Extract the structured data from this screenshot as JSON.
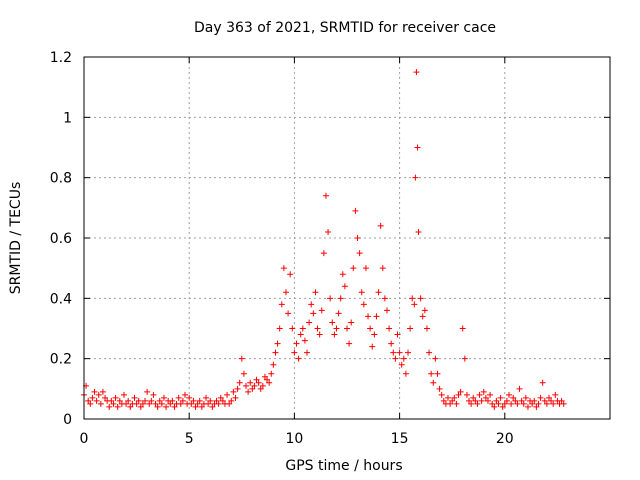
{
  "chart_data": {
    "type": "scatter",
    "title": "Day 363 of 2021, SRMTID for receiver cace",
    "xlabel": "GPS time / hours",
    "ylabel": "SRMTID / TECUs",
    "xlim": [
      0,
      25
    ],
    "ylim": [
      0,
      1.2
    ],
    "xticks": [
      0,
      5,
      10,
      15,
      20
    ],
    "xtick_labels": [
      "0",
      "5",
      "10",
      "15",
      "20"
    ],
    "yticks": [
      0,
      0.2,
      0.4,
      0.6,
      0.8,
      1.0,
      1.2
    ],
    "ytick_labels": [
      "0",
      "0.2",
      "0.4",
      "0.6",
      "0.8",
      "1",
      "1.2"
    ],
    "grid": true,
    "marker": "+",
    "marker_color": "#ff0000",
    "series": [
      {
        "name": "SRMTID",
        "x": [
          0.0,
          0.1,
          0.2,
          0.3,
          0.4,
          0.5,
          0.6,
          0.7,
          0.8,
          0.9,
          1.0,
          1.1,
          1.2,
          1.3,
          1.4,
          1.5,
          1.6,
          1.7,
          1.8,
          1.9,
          2.0,
          2.1,
          2.2,
          2.3,
          2.4,
          2.5,
          2.6,
          2.7,
          2.8,
          2.9,
          3.0,
          3.1,
          3.2,
          3.3,
          3.4,
          3.5,
          3.6,
          3.7,
          3.8,
          3.9,
          4.0,
          4.1,
          4.2,
          4.3,
          4.4,
          4.5,
          4.6,
          4.7,
          4.8,
          4.9,
          5.0,
          5.1,
          5.2,
          5.3,
          5.4,
          5.5,
          5.6,
          5.7,
          5.8,
          5.9,
          6.0,
          6.1,
          6.2,
          6.3,
          6.4,
          6.5,
          6.6,
          6.7,
          6.8,
          6.9,
          7.0,
          7.1,
          7.2,
          7.3,
          7.4,
          7.5,
          7.6,
          7.7,
          7.8,
          7.9,
          8.0,
          8.1,
          8.2,
          8.3,
          8.4,
          8.5,
          8.6,
          8.7,
          8.8,
          8.9,
          9.0,
          9.1,
          9.2,
          9.3,
          9.4,
          9.5,
          9.6,
          9.7,
          9.8,
          9.9,
          10.0,
          10.1,
          10.2,
          10.3,
          10.4,
          10.5,
          10.6,
          10.7,
          10.8,
          10.9,
          11.0,
          11.1,
          11.2,
          11.3,
          11.4,
          11.5,
          11.6,
          11.7,
          11.8,
          11.9,
          12.0,
          12.1,
          12.2,
          12.3,
          12.4,
          12.5,
          12.6,
          12.7,
          12.8,
          12.9,
          13.0,
          13.1,
          13.2,
          13.3,
          13.4,
          13.5,
          13.6,
          13.7,
          13.8,
          13.9,
          14.0,
          14.1,
          14.2,
          14.3,
          14.4,
          14.5,
          14.6,
          14.7,
          14.8,
          14.9,
          15.0,
          15.1,
          15.2,
          15.3,
          15.4,
          15.5,
          15.6,
          15.7,
          15.75,
          15.8,
          15.85,
          15.9,
          16.0,
          16.1,
          16.2,
          16.3,
          16.4,
          16.5,
          16.6,
          16.7,
          16.8,
          16.9,
          17.0,
          17.1,
          17.2,
          17.3,
          17.4,
          17.5,
          17.6,
          17.7,
          17.8,
          17.9,
          18.0,
          18.1,
          18.2,
          18.3,
          18.4,
          18.5,
          18.6,
          18.7,
          18.8,
          18.9,
          19.0,
          19.1,
          19.2,
          19.3,
          19.4,
          19.5,
          19.6,
          19.7,
          19.8,
          19.9,
          20.0,
          20.1,
          20.2,
          20.3,
          20.4,
          20.5,
          20.6,
          20.7,
          20.8,
          20.9,
          21.0,
          21.1,
          21.2,
          21.3,
          21.4,
          21.5,
          21.6,
          21.7,
          21.8,
          21.9,
          22.0,
          22.1,
          22.2,
          22.3,
          22.4,
          22.5,
          22.6,
          22.7,
          22.8
        ],
        "y": [
          0.08,
          0.11,
          0.06,
          0.05,
          0.07,
          0.09,
          0.06,
          0.08,
          0.05,
          0.09,
          0.07,
          0.06,
          0.04,
          0.06,
          0.05,
          0.07,
          0.04,
          0.06,
          0.05,
          0.08,
          0.05,
          0.06,
          0.04,
          0.05,
          0.07,
          0.05,
          0.06,
          0.04,
          0.05,
          0.06,
          0.09,
          0.05,
          0.06,
          0.08,
          0.05,
          0.04,
          0.06,
          0.05,
          0.07,
          0.04,
          0.06,
          0.05,
          0.06,
          0.04,
          0.05,
          0.07,
          0.05,
          0.06,
          0.08,
          0.05,
          0.07,
          0.05,
          0.06,
          0.04,
          0.05,
          0.06,
          0.04,
          0.05,
          0.07,
          0.05,
          0.06,
          0.04,
          0.05,
          0.06,
          0.05,
          0.07,
          0.06,
          0.05,
          0.08,
          0.05,
          0.06,
          0.09,
          0.07,
          0.1,
          0.12,
          0.2,
          0.15,
          0.11,
          0.09,
          0.12,
          0.1,
          0.11,
          0.13,
          0.12,
          0.1,
          0.11,
          0.14,
          0.13,
          0.12,
          0.15,
          0.18,
          0.22,
          0.25,
          0.3,
          0.38,
          0.5,
          0.42,
          0.35,
          0.48,
          0.3,
          0.22,
          0.25,
          0.2,
          0.28,
          0.3,
          0.26,
          0.22,
          0.32,
          0.38,
          0.35,
          0.42,
          0.3,
          0.28,
          0.36,
          0.55,
          0.74,
          0.62,
          0.4,
          0.32,
          0.28,
          0.3,
          0.35,
          0.4,
          0.48,
          0.44,
          0.3,
          0.25,
          0.32,
          0.5,
          0.69,
          0.6,
          0.55,
          0.42,
          0.38,
          0.5,
          0.34,
          0.3,
          0.24,
          0.28,
          0.34,
          0.42,
          0.64,
          0.5,
          0.4,
          0.36,
          0.3,
          0.25,
          0.22,
          0.2,
          0.28,
          0.22,
          0.18,
          0.2,
          0.15,
          0.22,
          0.3,
          0.4,
          0.38,
          0.8,
          1.15,
          0.9,
          0.62,
          0.4,
          0.34,
          0.36,
          0.3,
          0.22,
          0.15,
          0.12,
          0.2,
          0.15,
          0.1,
          0.08,
          0.06,
          0.05,
          0.07,
          0.05,
          0.06,
          0.07,
          0.05,
          0.08,
          0.09,
          0.3,
          0.2,
          0.08,
          0.06,
          0.05,
          0.07,
          0.06,
          0.05,
          0.08,
          0.06,
          0.09,
          0.07,
          0.06,
          0.08,
          0.05,
          0.04,
          0.06,
          0.05,
          0.07,
          0.04,
          0.05,
          0.06,
          0.08,
          0.05,
          0.07,
          0.06,
          0.05,
          0.1,
          0.06,
          0.05,
          0.07,
          0.04,
          0.06,
          0.05,
          0.06,
          0.04,
          0.05,
          0.07,
          0.12,
          0.06,
          0.05,
          0.07,
          0.06,
          0.05,
          0.08,
          0.06,
          0.05,
          0.06,
          0.05
        ]
      }
    ]
  }
}
